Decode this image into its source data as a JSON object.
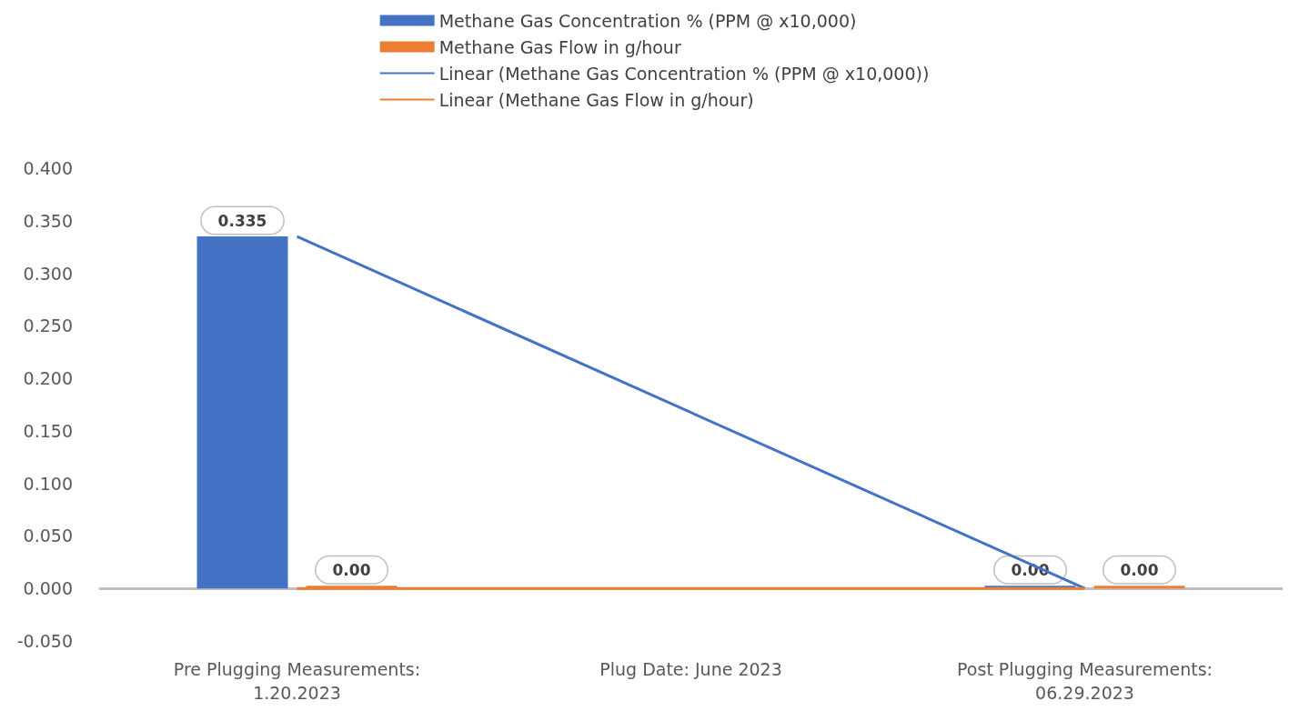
{
  "chart_data": {
    "type": "bar",
    "categories": [
      "Pre Plugging Measurements:\n1.20.2023",
      "Plug Date: June 2023",
      "Post Plugging Measurements:\n06.29.2023"
    ],
    "series": [
      {
        "name": "Methane Gas Concentration % (PPM @ x10,000)",
        "color": "#4472c4",
        "values": [
          0.335,
          null,
          0.0
        ],
        "value_labels": [
          "0.335",
          null,
          "0.00"
        ]
      },
      {
        "name": "Methane Gas Flow in g/hour",
        "color": "#ed7d31",
        "values": [
          0.0,
          null,
          0.0
        ],
        "value_labels": [
          "0.00",
          null,
          "0.00"
        ]
      },
      {
        "name": "Linear (Methane Gas Concentration % (PPM @ x10,000))",
        "type": "line",
        "color": "#4472c4",
        "values": [
          0.335,
          null,
          0.0
        ]
      },
      {
        "name": "Linear (Methane Gas Flow in g/hour)",
        "type": "line",
        "color": "#ed7d31",
        "values": [
          0.0,
          null,
          0.0
        ]
      }
    ],
    "ylim": [
      -0.05,
      0.4
    ],
    "yticks": [
      {
        "value": -0.05,
        "label": "-0.050"
      },
      {
        "value": 0,
        "label": "0.000"
      },
      {
        "value": 0.05,
        "label": "0.050"
      },
      {
        "value": 0.1,
        "label": "0.100"
      },
      {
        "value": 0.15,
        "label": "0.150"
      },
      {
        "value": 0.2,
        "label": "0.200"
      },
      {
        "value": 0.25,
        "label": "0.250"
      },
      {
        "value": 0.3,
        "label": "0.300"
      },
      {
        "value": 0.35,
        "label": "0.350"
      },
      {
        "value": 0.4,
        "label": "0.400"
      }
    ],
    "legend": "top",
    "marker": "none"
  }
}
